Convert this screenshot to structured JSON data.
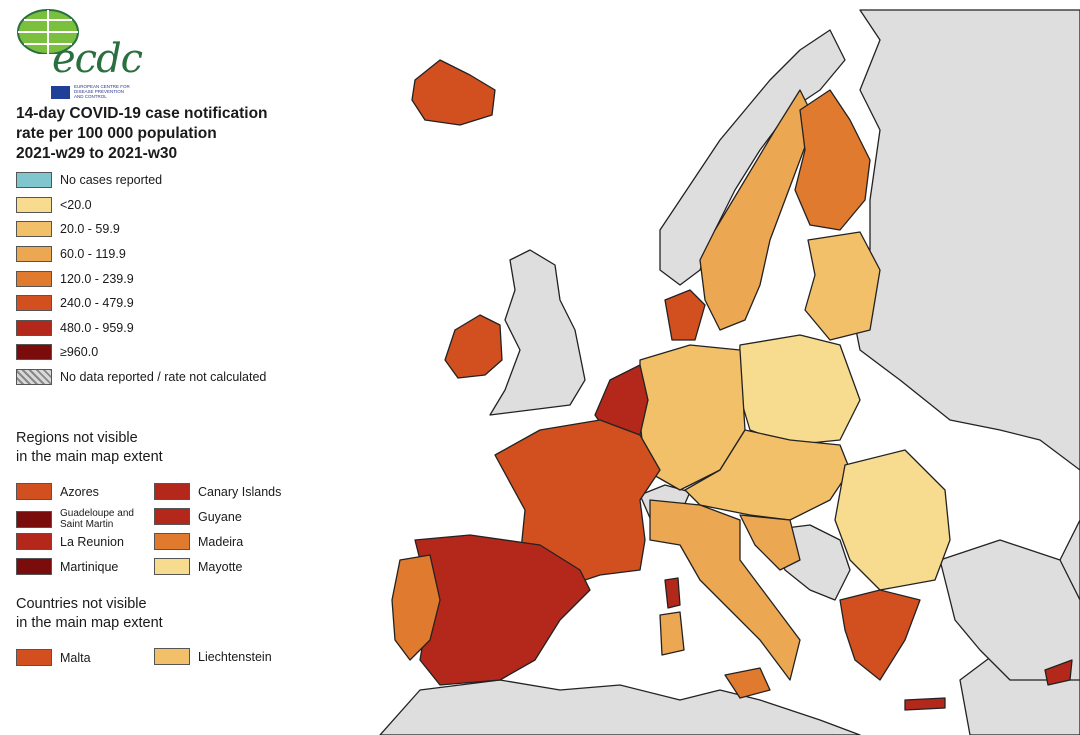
{
  "logo": {
    "text": "ecdc",
    "subtitle": "EUROPEAN CENTRE FOR DISEASE PREVENTION AND CONTROL"
  },
  "title": {
    "line1": "14-day COVID-19 case notification",
    "line2": "rate per 100 000 population",
    "line3": "2021-w29 to 2021-w30"
  },
  "legend": [
    {
      "label": "No cases reported",
      "color": "#7fc6cf"
    },
    {
      "label": "<20.0",
      "color": "#f7dc8f"
    },
    {
      "label": "20.0 - 59.9",
      "color": "#f3c06a"
    },
    {
      "label": "60.0 - 119.9",
      "color": "#eca753"
    },
    {
      "label": "120.0 - 239.9",
      "color": "#e07a2f"
    },
    {
      "label": "240.0 - 479.9",
      "color": "#d2501f"
    },
    {
      "label": "480.0 - 959.9",
      "color": "#b3281a"
    },
    {
      "label": "≥960.0",
      "color": "#7a0c0c"
    },
    {
      "label": "No data reported / rate not calculated",
      "color": "hatch"
    }
  ],
  "regions_heading": {
    "line1": "Regions not visible",
    "line2": "in the main map extent"
  },
  "regions": [
    {
      "label": "Azores",
      "color": "#d2501f"
    },
    {
      "label": "Canary Islands",
      "color": "#b3281a"
    },
    {
      "label": "Guadeloupe and Saint Martin",
      "color": "#7a0c0c"
    },
    {
      "label": "Guyane",
      "color": "#b3281a"
    },
    {
      "label": "La Reunion",
      "color": "#b3281a"
    },
    {
      "label": "Madeira",
      "color": "#e07a2f"
    },
    {
      "label": "Martinique",
      "color": "#7a0c0c"
    },
    {
      "label": "Mayotte",
      "color": "#f7dc8f"
    }
  ],
  "countries_heading": {
    "line1": "Countries not visible",
    "line2": "in the main map extent"
  },
  "countries": [
    {
      "label": "Malta",
      "color": "#d2501f"
    },
    {
      "label": "Liechtenstein",
      "color": "#f3c06a"
    }
  ]
}
